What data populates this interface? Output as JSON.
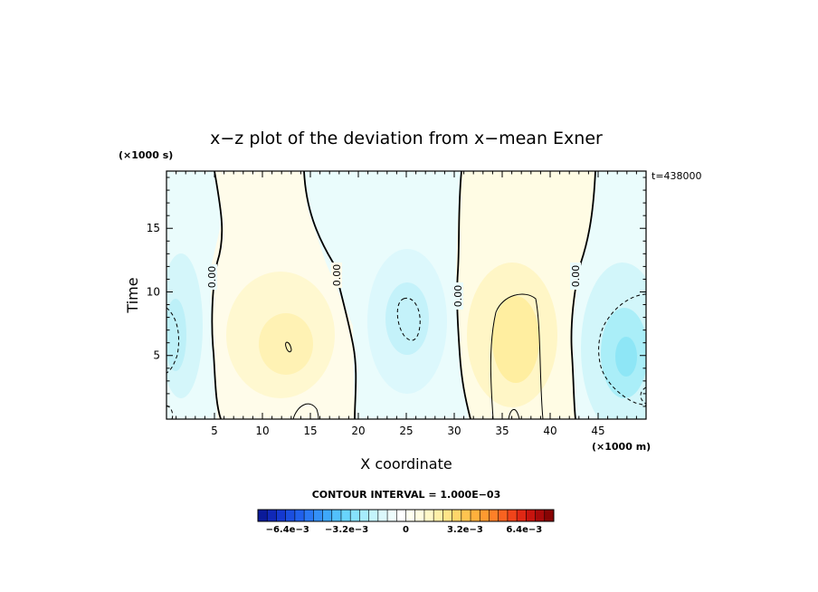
{
  "chart_data": {
    "type": "heatmap",
    "title": "x−z plot of the deviation from x−mean Exner",
    "xlabel": "X coordinate",
    "ylabel": "Time",
    "x_unit": "(×1000 m)",
    "y_unit": "(×1000 s)",
    "time_label": "t=438000",
    "xlim": [
      0,
      50
    ],
    "ylim": [
      0,
      19.5
    ],
    "x_ticks": [
      5,
      10,
      15,
      20,
      25,
      30,
      35,
      40,
      45
    ],
    "y_ticks": [
      5,
      10,
      15
    ],
    "contour_interval_text": "CONTOUR INTERVAL = 1.000E−03",
    "contour_labels": [
      "0.00",
      "0.00",
      "0.00",
      "0.00"
    ],
    "colorbar": {
      "min": -0.008,
      "max": 0.008,
      "tick_values": [
        -0.0064,
        -0.0032,
        0,
        0.0032,
        0.0064
      ],
      "tick_labels": [
        "−6.4e−3",
        "−3.2e−3",
        "0",
        "3.2e−3",
        "6.4e−3"
      ],
      "colors": [
        "#0a1a9a",
        "#1028b8",
        "#1438d0",
        "#1a4ee0",
        "#2060ec",
        "#2a78f4",
        "#3490f8",
        "#3ea8fa",
        "#52c0fc",
        "#68d4fc",
        "#86e2fc",
        "#a6ecfc",
        "#c4f4fc",
        "#dcf8fc",
        "#eefcfc",
        "#ffffff",
        "#fffff0",
        "#fffce0",
        "#fff8c8",
        "#fff0a8",
        "#ffe488",
        "#ffd66a",
        "#ffc450",
        "#ffb03c",
        "#ff9a30",
        "#ff8028",
        "#f86220",
        "#f0441a",
        "#e02814",
        "#c8140e",
        "#a80a0a",
        "#880404"
      ]
    },
    "regions": [
      {
        "sign": "negative",
        "x_range": [
          0,
          5
        ],
        "y_range": [
          0,
          19.5
        ],
        "peak": -0.0018
      },
      {
        "sign": "positive",
        "x_range": [
          6,
          19
        ],
        "y_range": [
          0,
          19.5
        ],
        "peak": 0.0025
      },
      {
        "sign": "negative",
        "x_range": [
          19,
          31
        ],
        "y_range": [
          0,
          19.5
        ],
        "peak": -0.0022
      },
      {
        "sign": "positive",
        "x_range": [
          31,
          42
        ],
        "y_range": [
          0,
          19.5
        ],
        "peak": 0.0028
      },
      {
        "sign": "negative",
        "x_range": [
          42,
          50
        ],
        "y_range": [
          0,
          19.5
        ],
        "peak": -0.0035
      }
    ]
  }
}
